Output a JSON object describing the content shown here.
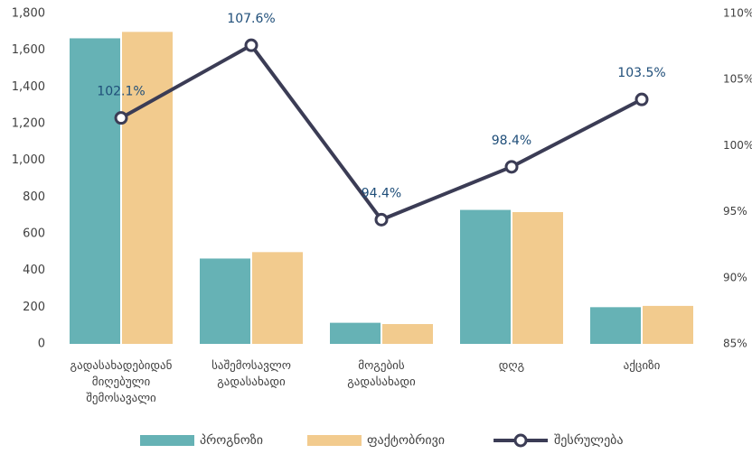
{
  "chart_data": {
    "type": "bar_line",
    "categories": [
      "გადასახადებიდან მიღებული შემოსავალი",
      "საშემოსავლო გადასახადი",
      "მოგების გადასახადი",
      "დღგ",
      "აქციზი"
    ],
    "series": [
      {
        "name": "პროგნოზი",
        "color": "#66b2b5",
        "type": "bar",
        "values": [
          1665,
          465,
          115,
          730,
          200
        ]
      },
      {
        "name": "ფაქტობრივი",
        "color": "#f2cb8e",
        "type": "bar",
        "values": [
          1700,
          500,
          108,
          718,
          207
        ]
      },
      {
        "name": "შესრულება",
        "color": "#3b3c55",
        "type": "line",
        "axis": "y2",
        "values": [
          102.1,
          107.6,
          94.4,
          98.4,
          103.5
        ],
        "value_labels": [
          "102.1%",
          "107.6%",
          "94.4%",
          "98.4%",
          "103.5%"
        ]
      }
    ],
    "ylim": [
      0,
      1800
    ],
    "yticks": [
      0,
      200,
      400,
      600,
      800,
      {
        "value": 1000,
        "label": "1,000"
      },
      {
        "value": 1200,
        "label": "1,200"
      },
      {
        "value": 1400,
        "label": "1,400"
      },
      {
        "value": 1600,
        "label": "1,600"
      },
      {
        "value": 1800,
        "label": "1,800"
      }
    ],
    "y2lim": [
      85,
      110
    ],
    "y2ticks": [
      {
        "value": 85,
        "label": "85%"
      },
      {
        "value": 90,
        "label": "90%"
      },
      {
        "value": 95,
        "label": "95%"
      },
      {
        "value": 100,
        "label": "100%"
      },
      {
        "value": 105,
        "label": "105%"
      },
      {
        "value": 110,
        "label": "110%"
      }
    ],
    "legend": "bottom"
  }
}
